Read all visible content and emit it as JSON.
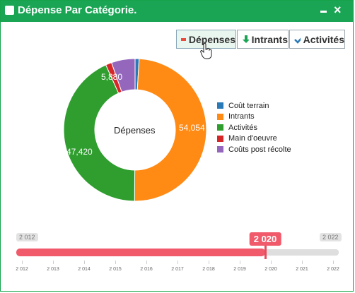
{
  "window": {
    "title": "Dépense Par Catégorie."
  },
  "tabs": [
    {
      "label": "Dépenses",
      "icon": "minus-icon",
      "color": "#e74c3c",
      "active": true
    },
    {
      "label": "Intrants",
      "icon": "arrow-down-icon",
      "color": "#1aa555",
      "active": false
    },
    {
      "label": "Activités",
      "icon": "check-icon",
      "color": "#2a7ab8",
      "active": false
    }
  ],
  "chart_data": {
    "type": "pie",
    "center_label": "Dépenses",
    "series": [
      {
        "name": "Coût terrain",
        "value": 1000,
        "color": "#2a7ab8"
      },
      {
        "name": "Intrants",
        "value": 54054,
        "color": "#ff8a14"
      },
      {
        "name": "Activités",
        "value": 47420,
        "color": "#2f9e2f"
      },
      {
        "name": "Main d'oeuvre",
        "value": 1500,
        "color": "#d62728"
      },
      {
        "name": "Coûts post récolte",
        "value": 5880,
        "color": "#9467bd"
      }
    ],
    "data_labels": [
      {
        "series": "Intrants",
        "text": "54,054"
      },
      {
        "series": "Activités",
        "text": "47,420"
      },
      {
        "series": "Coûts post récolte",
        "text": "5,880"
      }
    ]
  },
  "year_slider": {
    "min_label": "2 012",
    "max_label": "2 022",
    "selected_label": "2 020",
    "min": 2012,
    "max": 2022,
    "selected": 2020,
    "ticks": [
      "2 012",
      "2 013",
      "2 014",
      "2 015",
      "2 016",
      "2 017",
      "2 018",
      "2 019",
      "2 020",
      "2 021",
      "2 022"
    ],
    "fill_color": "#f05a6a"
  }
}
